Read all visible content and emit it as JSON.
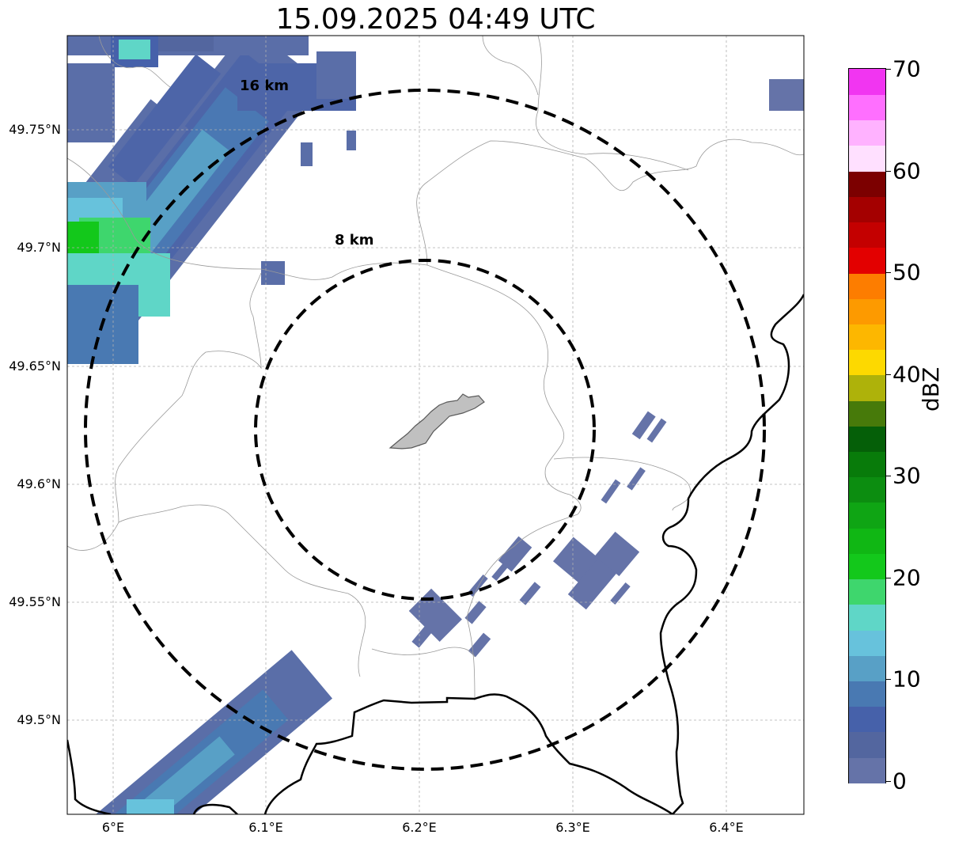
{
  "title": "15.09.2025 04:49 UTC",
  "axes": {
    "lat_ticks": [
      "49.75°N",
      "49.7°N",
      "49.65°N",
      "49.6°N",
      "49.55°N",
      "49.5°N"
    ],
    "lon_ticks": [
      "6°E",
      "6.1°E",
      "6.2°E",
      "6.3°E",
      "6.4°E"
    ],
    "gridlines": true
  },
  "range_rings": [
    {
      "label": "8 km",
      "radius_km": 8
    },
    {
      "label": "16 km",
      "radius_km": 16
    }
  ],
  "colorbar": {
    "unit": "dBZ",
    "tick_labels": [
      "0",
      "10",
      "20",
      "30",
      "40",
      "50",
      "60",
      "70"
    ],
    "colors": [
      "#6573a8",
      "#53669f",
      "#4661aa",
      "#4979b2",
      "#58a0c6",
      "#67c2dc",
      "#5fd6c7",
      "#3ed66d",
      "#13c81b",
      "#10b714",
      "#0fa514",
      "#0c8d10",
      "#087b0a",
      "#055f08",
      "#477a0a",
      "#aeb20a",
      "#fdd900",
      "#fdb700",
      "#fd9a00",
      "#fd7d00",
      "#e30000",
      "#c40000",
      "#a40000",
      "#7c0000",
      "#ffe0ff",
      "#ffb2ff",
      "#ff6fff",
      "#f135f1"
    ]
  },
  "colors": {
    "ring": "#000000",
    "border": "#000000",
    "admin_lines": "#999999",
    "town_fill": "#c0c0c0"
  }
}
